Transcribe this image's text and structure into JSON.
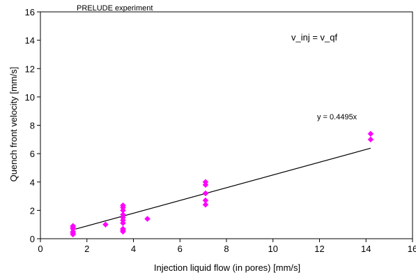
{
  "chart_data": {
    "type": "scatter",
    "title": "PRELUDE experiment",
    "xlabel": "Injection liquid flow (in pores) [mm/s]",
    "ylabel": "Quench front velocity [mm/s]",
    "xlim": [
      0,
      16
    ],
    "ylim": [
      0,
      16
    ],
    "x_ticks": [
      0,
      2,
      4,
      6,
      8,
      10,
      12,
      14,
      16
    ],
    "y_ticks": [
      0,
      2,
      4,
      6,
      8,
      10,
      12,
      14,
      16
    ],
    "grid": false,
    "legend": "none",
    "marker_color": "#ff00ff",
    "marker": "diamond",
    "line_color": "#000000",
    "points": [
      {
        "x": 1.4,
        "y": 0.3
      },
      {
        "x": 1.4,
        "y": 0.4
      },
      {
        "x": 1.4,
        "y": 0.5
      },
      {
        "x": 1.4,
        "y": 0.7
      },
      {
        "x": 1.4,
        "y": 0.8
      },
      {
        "x": 1.4,
        "y": 0.9
      },
      {
        "x": 2.8,
        "y": 1.0
      },
      {
        "x": 3.55,
        "y": 0.5
      },
      {
        "x": 3.55,
        "y": 0.6
      },
      {
        "x": 3.55,
        "y": 0.7
      },
      {
        "x": 3.55,
        "y": 1.1
      },
      {
        "x": 3.55,
        "y": 1.3
      },
      {
        "x": 3.55,
        "y": 1.5
      },
      {
        "x": 3.55,
        "y": 1.7
      },
      {
        "x": 3.55,
        "y": 2.0
      },
      {
        "x": 3.55,
        "y": 2.2
      },
      {
        "x": 3.55,
        "y": 2.35
      },
      {
        "x": 4.6,
        "y": 1.4
      },
      {
        "x": 7.1,
        "y": 2.4
      },
      {
        "x": 7.1,
        "y": 2.7
      },
      {
        "x": 7.1,
        "y": 3.2
      },
      {
        "x": 7.1,
        "y": 3.8
      },
      {
        "x": 7.1,
        "y": 4.0
      },
      {
        "x": 14.2,
        "y": 7.0
      },
      {
        "x": 14.2,
        "y": 7.4
      }
    ],
    "trendline": {
      "slope": 0.4495,
      "x_range": [
        1.4,
        14.2
      ],
      "equation_label": "y = 0.4495x"
    },
    "annotations": {
      "relation_label": "v_inj = v_qf"
    }
  }
}
